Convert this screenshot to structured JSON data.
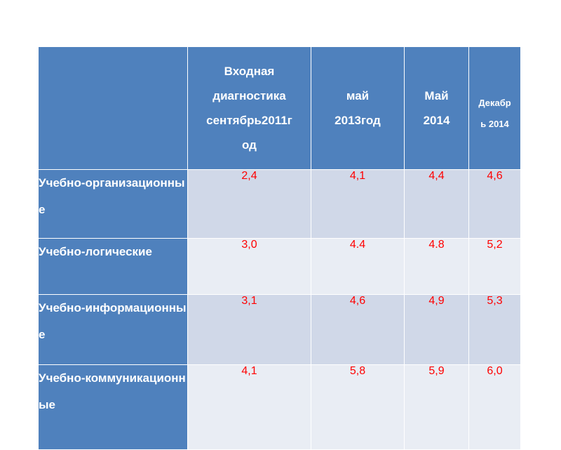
{
  "table": {
    "columns": [
      {
        "label_lines": [
          "Входная",
          "диагностика",
          "сентябрь2011г",
          "од"
        ]
      },
      {
        "label_lines": [
          "май",
          "2013год"
        ]
      },
      {
        "label_lines": [
          "Май",
          "2014"
        ]
      },
      {
        "label_lines": [
          "Декабр",
          "ь 2014"
        ]
      }
    ],
    "rows": [
      {
        "label": "Учебно-организационные",
        "values": [
          "2,4",
          "4,1",
          "4,4",
          "4,6"
        ]
      },
      {
        "label": "Учебно-логические",
        "values": [
          "3,0",
          "4.4",
          "4.8",
          "5,2"
        ]
      },
      {
        "label": "Учебно-информационные",
        "values": [
          "3,1",
          "4,6",
          "4,9",
          "5,3"
        ]
      },
      {
        "label": "Учебно-коммуникационные",
        "values": [
          "4,1",
          "5,8",
          "5,9",
          "6,0"
        ]
      }
    ]
  },
  "colors": {
    "header_bg": "#4f81bd",
    "row_odd_bg": "#d0d8e8",
    "row_even_bg": "#e9edf4",
    "value_text": "#ff0000"
  }
}
